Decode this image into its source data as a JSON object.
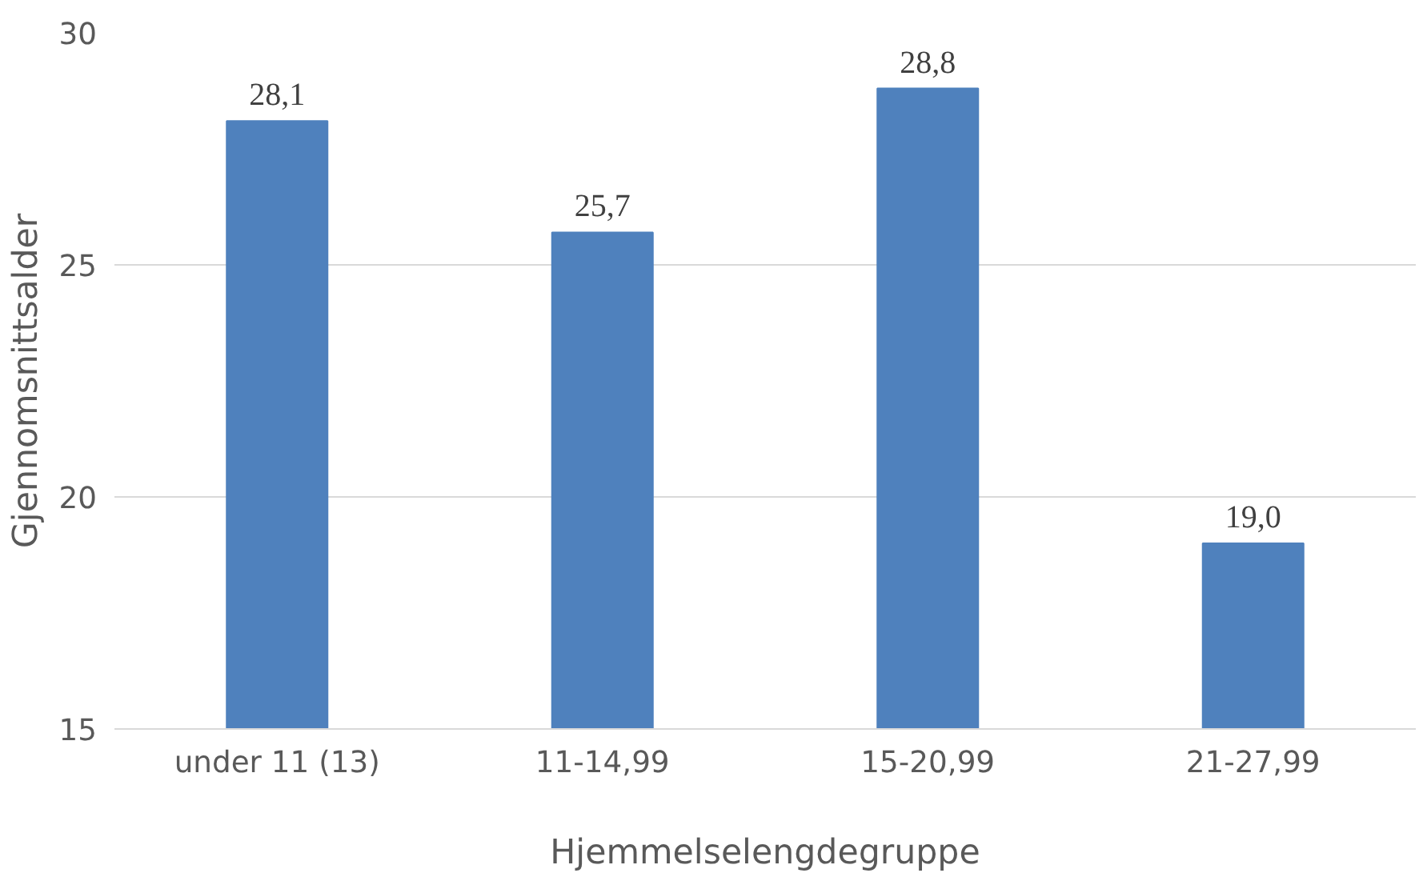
{
  "chart_data": {
    "type": "bar",
    "xlabel": "Hjemmelselengdegruppe",
    "ylabel": "Gjennomsnittsalder",
    "categories": [
      "under 11 (13)",
      "11-14,99",
      "15-20,99",
      "21-27,99"
    ],
    "values": [
      28.1,
      25.7,
      28.8,
      19.0
    ],
    "value_labels": [
      "28,1",
      "25,7",
      "28,8",
      "19,0"
    ],
    "color": "#4f81bd",
    "ylim": [
      15,
      30
    ],
    "yticks": [
      15,
      20,
      25,
      30
    ],
    "grid": "y"
  }
}
